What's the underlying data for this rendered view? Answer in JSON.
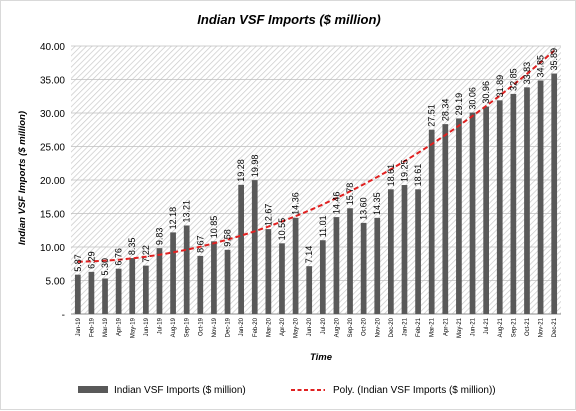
{
  "chart_data": {
    "type": "bar",
    "title": "Indian VSF Imports ($ million)",
    "xlabel": "Time",
    "ylabel": "Indian VSF Imports ($ million)",
    "ylim": [
      0,
      40
    ],
    "yticks": [
      "-",
      "5.00",
      "10.00",
      "15.00",
      "20.00",
      "25.00",
      "30.00",
      "35.00",
      "40.00"
    ],
    "grid": true,
    "legend_position": "bottom",
    "categories": [
      "Jan-19",
      "Feb-19",
      "Mar-19",
      "Apr-19",
      "May-19",
      "Jun-19",
      "Jul-19",
      "Aug-19",
      "Sep-19",
      "Oct-19",
      "Nov-19",
      "Dec-19",
      "Jan-20",
      "Feb-20",
      "Mar-20",
      "Apr-20",
      "May-20",
      "Jun-20",
      "Jul-20",
      "Aug-20",
      "Sep-20",
      "Oct-20",
      "Nov-20",
      "Dec-20",
      "Jan-21",
      "Feb-21",
      "Mar-21",
      "Apr-21",
      "May-21",
      "Jun-21",
      "Jul-21",
      "Aug-21",
      "Sep-21",
      "Oct-21",
      "Nov-21",
      "Dec-21"
    ],
    "series": [
      {
        "name": "Indian VSF Imports ($ million)",
        "values": [
          5.87,
          6.29,
          5.3,
          6.76,
          8.35,
          7.22,
          9.83,
          12.18,
          13.21,
          8.67,
          10.85,
          9.58,
          19.28,
          19.98,
          12.67,
          10.55,
          14.36,
          7.14,
          11.01,
          14.46,
          15.78,
          13.6,
          14.35,
          18.61,
          19.25,
          18.61,
          27.51,
          28.34,
          29.19,
          30.06,
          30.96,
          31.89,
          32.85,
          33.83,
          34.85,
          35.89
        ],
        "labels": [
          "5.87",
          "6.29",
          "5.30",
          "6.76",
          "8.35",
          "7.22",
          "9.83",
          "12.18",
          "13.21",
          "8.67",
          "10.85",
          "9.58",
          "19.28",
          "19.98",
          "12.67",
          "10.55",
          "14.36",
          "7.14",
          "11.01",
          "14.46",
          "15.78",
          "13.60",
          "14.35",
          "18.61",
          "19.25",
          "18.61",
          "27.51",
          "28.34",
          "29.19",
          "30.06",
          "30.96",
          "31.89",
          "32.85",
          "33.83",
          "34.85",
          "35.89"
        ],
        "color": "#595959"
      }
    ],
    "trendline": {
      "name": "Poly. (Indian VSF Imports ($ million))",
      "type": "polynomial",
      "color": "#e02020",
      "values": [
        7.8,
        7.85,
        7.95,
        8.1,
        8.3,
        8.55,
        8.85,
        9.2,
        9.6,
        10.05,
        10.55,
        11.1,
        11.7,
        12.35,
        13.05,
        13.8,
        14.6,
        15.45,
        16.35,
        17.3,
        18.3,
        19.35,
        20.45,
        21.6,
        22.8,
        24.05,
        25.35,
        26.7,
        28.1,
        29.55,
        31.05,
        32.6,
        34.2,
        35.85,
        37.55,
        39.3
      ]
    }
  }
}
